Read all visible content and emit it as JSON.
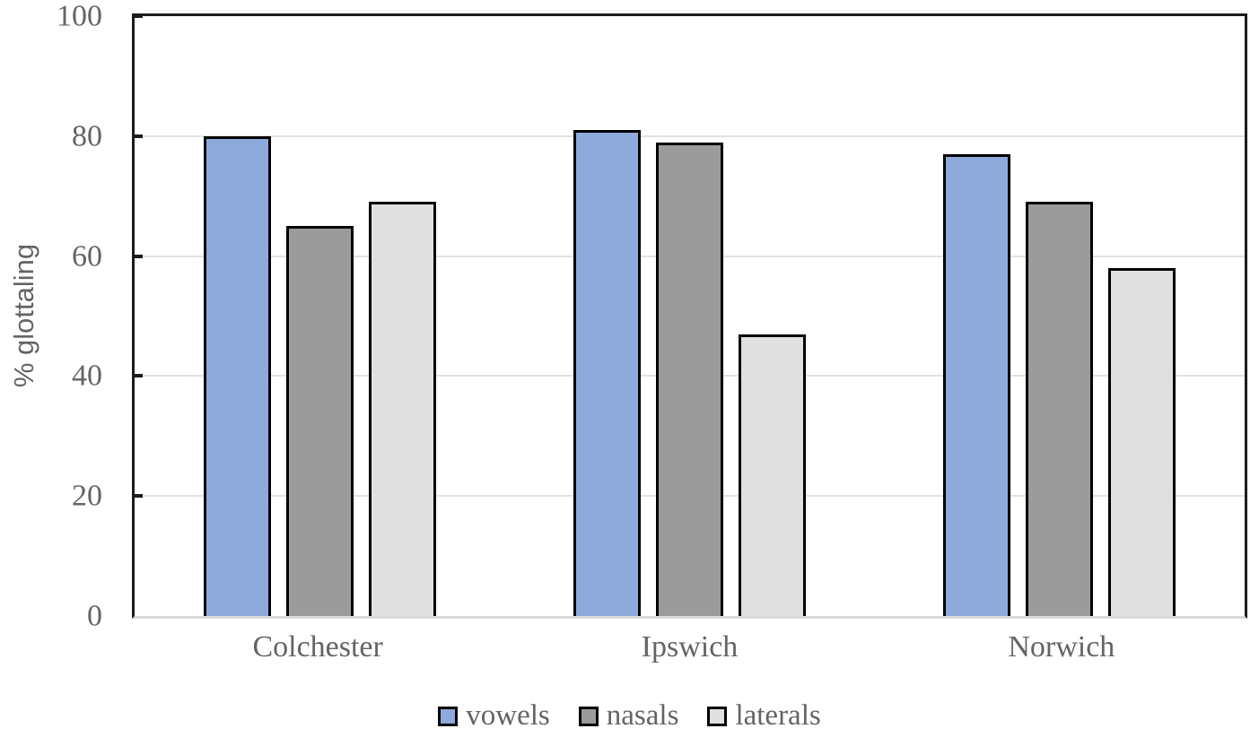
{
  "chart_data": {
    "type": "bar",
    "title": "",
    "xlabel": "",
    "ylabel": "% glottaling",
    "ylim": [
      0,
      100
    ],
    "yticks": [
      0,
      20,
      40,
      60,
      80,
      100
    ],
    "grid": true,
    "legend_position": "bottom",
    "categories": [
      "Colchester",
      "Ipswich",
      "Norwich"
    ],
    "series": [
      {
        "name": "vowels",
        "color": "#8EA9DB",
        "values": [
          80,
          81,
          77
        ]
      },
      {
        "name": "nasals",
        "color": "#9B9B9B",
        "values": [
          65,
          79,
          69
        ]
      },
      {
        "name": "laterals",
        "color": "#E0E0E0",
        "values": [
          69,
          47,
          58
        ]
      }
    ]
  },
  "style": {
    "bar_outline": "#000000",
    "plot_border": "#1C1C1C",
    "gridline": "#E2E2E2",
    "baseline": "#D9D9D9",
    "text_color": "#646464"
  }
}
